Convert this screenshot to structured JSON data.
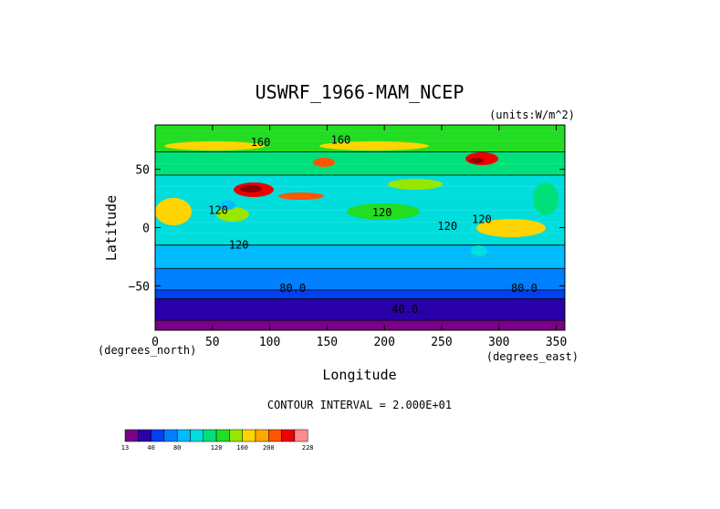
{
  "chart_data": {
    "type": "heatmap",
    "title": "USWRF_1966-MAM_NCEP",
    "units": "(units:W/m^2)",
    "xlabel": "Longitude",
    "ylabel": "Latitude",
    "x_unit": "(degrees_east)",
    "y_unit": "(degrees_north)",
    "xlim": [
      0,
      357.5
    ],
    "ylim": [
      -88,
      88
    ],
    "x_ticks": [
      0,
      50,
      100,
      150,
      200,
      250,
      300,
      350
    ],
    "y_ticks": [
      50,
      0,
      -50
    ],
    "contour_interval": "CONTOUR INTERVAL = 2.000E+01",
    "contour_labels": [
      {
        "text": "160",
        "lon": 92,
        "lat": 73
      },
      {
        "text": "160",
        "lon": 162,
        "lat": 75
      },
      {
        "text": "120",
        "lon": 198,
        "lat": 13
      },
      {
        "text": "120",
        "lon": 73,
        "lat": -15
      },
      {
        "text": "120",
        "lon": 55,
        "lat": 15
      },
      {
        "text": "120",
        "lon": 255,
        "lat": 1
      },
      {
        "text": "120",
        "lon": 285,
        "lat": 7
      },
      {
        "text": "80.0",
        "lon": 120,
        "lat": -52
      },
      {
        "text": "80.0",
        "lon": 322,
        "lat": -52
      },
      {
        "text": "40.0",
        "lon": 218,
        "lat": -70
      }
    ],
    "latitude_profile": [
      {
        "lat": 88,
        "value": 148
      },
      {
        "lat": 78,
        "value": 158
      },
      {
        "lat": 70,
        "value": 142
      },
      {
        "lat": 60,
        "value": 138
      },
      {
        "lat": 50,
        "value": 132
      },
      {
        "lat": 40,
        "value": 118
      },
      {
        "lat": 30,
        "value": 112
      },
      {
        "lat": 20,
        "value": 102
      },
      {
        "lat": 10,
        "value": 112
      },
      {
        "lat": 0,
        "value": 110
      },
      {
        "lat": -10,
        "value": 102
      },
      {
        "lat": -20,
        "value": 94
      },
      {
        "lat": -30,
        "value": 86
      },
      {
        "lat": -40,
        "value": 78
      },
      {
        "lat": -50,
        "value": 70
      },
      {
        "lat": -57,
        "value": 58
      },
      {
        "lat": -65,
        "value": 38
      },
      {
        "lat": -75,
        "value": 28
      },
      {
        "lat": -84,
        "value": 14
      }
    ],
    "colorbar": {
      "colors": [
        "#7a0088",
        "#2a00aa",
        "#0040ee",
        "#0080ff",
        "#00bbff",
        "#00dddd",
        "#00e07a",
        "#22dd22",
        "#99e600",
        "#ffd400",
        "#ffa800",
        "#ff5500",
        "#ee0000",
        "#ff8c8c"
      ],
      "tick_labels": [
        "13",
        "40",
        "80",
        "120",
        "160",
        "200",
        "228"
      ],
      "tick_at_boundary": [
        0,
        2,
        4,
        7,
        9,
        11,
        14
      ]
    }
  }
}
